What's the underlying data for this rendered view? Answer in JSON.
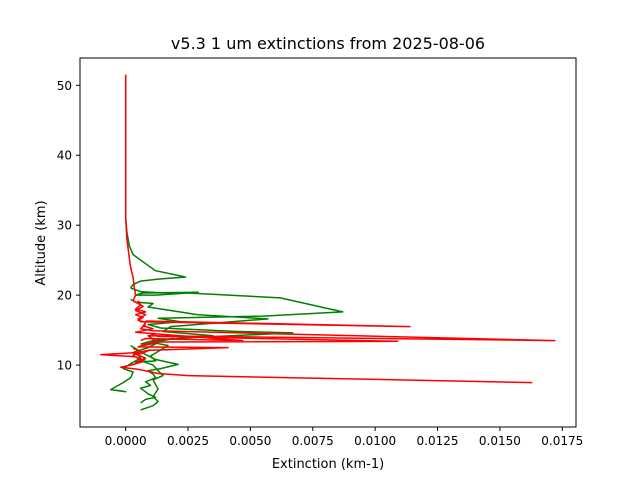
{
  "chart_data": {
    "type": "line",
    "title": "v5.3 1 um extinctions from 2025-08-06",
    "xlabel": "Extinction (km-1)",
    "ylabel": "Altitude (km)",
    "xlim": [
      -0.00183,
      0.01805
    ],
    "ylim": [
      1.15,
      53.9
    ],
    "xticks": [
      0.0,
      0.0025,
      0.005,
      0.0075,
      0.01,
      0.0125,
      0.015,
      0.0175
    ],
    "xtick_labels": [
      "0.0000",
      "0.0025",
      "0.0050",
      "0.0075",
      "0.0100",
      "0.0125",
      "0.0150",
      "0.0175"
    ],
    "yticks": [
      10,
      20,
      30,
      40,
      50
    ],
    "ytick_labels": [
      "10",
      "20",
      "30",
      "40",
      "50"
    ],
    "grid": false,
    "legend": "none",
    "series": [
      {
        "color": "#008000",
        "points": [
          [
            0.0,
            51.5
          ],
          [
            0.0,
            45
          ],
          [
            0.0,
            40
          ],
          [
            0.0,
            35
          ],
          [
            0.0,
            31
          ],
          [
            5e-05,
            29
          ],
          [
            0.00015,
            27
          ],
          [
            0.0003,
            25.8
          ],
          [
            0.0008,
            24.5
          ],
          [
            0.0012,
            23.5
          ],
          [
            0.0024,
            22.6
          ],
          [
            0.0013,
            22.3
          ],
          [
            0.0006,
            22
          ],
          [
            0.0003,
            21.5
          ],
          [
            0.0002,
            21
          ]
        ]
      },
      {
        "color": "#008000",
        "points": [
          [
            0.0002,
            21
          ],
          [
            0.0006,
            20.5
          ],
          [
            0.0015,
            20.3
          ],
          [
            0.0029,
            20.4
          ],
          [
            0.0007,
            20.3
          ],
          [
            0.0004,
            20
          ]
        ]
      },
      {
        "color": "#008000",
        "points": [
          [
            0.0004,
            20
          ],
          [
            0.0012,
            20
          ],
          [
            0.0025,
            20.3
          ],
          [
            0.0062,
            19.6
          ],
          [
            0.0087,
            17.6
          ],
          [
            0.0055,
            17
          ],
          [
            0.0013,
            16.7
          ],
          [
            0.0022,
            16.2
          ],
          [
            0.0009,
            15.8
          ],
          [
            0.0014,
            15.3
          ],
          [
            0.0045,
            14.8
          ],
          [
            0.0067,
            14.6
          ],
          [
            0.0025,
            13.9
          ],
          [
            0.0011,
            13.5
          ],
          [
            0.0006,
            13
          ]
        ]
      },
      {
        "color": "#008000",
        "points": [
          [
            0.0002,
            19.4
          ],
          [
            0.0004,
            19
          ],
          [
            0.0011,
            18.8
          ],
          [
            0.0009,
            18.3
          ],
          [
            0.0018,
            17.8
          ],
          [
            0.0029,
            17.2
          ],
          [
            0.0057,
            16.6
          ],
          [
            0.0018,
            15.5
          ],
          [
            0.0015,
            14.8
          ],
          [
            0.0035,
            14.2
          ],
          [
            0.0015,
            13.6
          ],
          [
            0.0009,
            12.5
          ],
          [
            0.0003,
            11.8
          ]
        ]
      },
      {
        "color": "#008000",
        "points": [
          [
            0.0002,
            12.8
          ],
          [
            0.0008,
            11.5
          ],
          [
            0.0012,
            10.8
          ],
          [
            0.0021,
            10.1
          ],
          [
            0.0014,
            9.5
          ],
          [
            0.0009,
            9.2
          ],
          [
            0.0011,
            8.7
          ],
          [
            0.0012,
            8.2
          ],
          [
            0.0008,
            7.6
          ],
          [
            0.001,
            7.1
          ],
          [
            0.0006,
            6.7
          ],
          [
            0.0009,
            5.9
          ],
          [
            0.0012,
            5.4
          ],
          [
            0.0008,
            5.1
          ],
          [
            0.0006,
            4.6
          ]
        ]
      },
      {
        "color": "#008000",
        "points": [
          [
            0.0004,
            11.9
          ],
          [
            0.0006,
            11
          ],
          [
            0.0002,
            10.2
          ],
          [
            -0.0001,
            9.5
          ],
          [
            0.0003,
            9
          ],
          [
            0.0002,
            8.2
          ],
          [
            -0.0001,
            7.5
          ],
          [
            -0.0003,
            7.1
          ],
          [
            -0.0006,
            6.5
          ],
          [
            0.0,
            6.2
          ],
          [
            -0.0003,
            6.4
          ]
        ]
      },
      {
        "color": "#008000",
        "points": [
          [
            0.0007,
            10.5
          ],
          [
            0.0011,
            10
          ],
          [
            0.0013,
            9.2
          ],
          [
            0.0015,
            8.5
          ],
          [
            0.0011,
            7.9
          ],
          [
            0.0012,
            7.2
          ],
          [
            0.0013,
            6.6
          ],
          [
            0.0011,
            5.5
          ],
          [
            0.0013,
            4.8
          ],
          [
            0.0011,
            4.2
          ],
          [
            0.0006,
            3.6
          ]
        ]
      },
      {
        "color": "#008000",
        "points": [
          [
            0.0008,
            10.8
          ],
          [
            0.0004,
            10.4
          ],
          [
            0.0012,
            10.6
          ],
          [
            0.001,
            11.3
          ],
          [
            0.0017,
            12.8
          ],
          [
            0.0011,
            13.2
          ],
          [
            0.0019,
            13.8
          ],
          [
            0.0009,
            13.3
          ]
        ]
      },
      {
        "color": "#ff0000",
        "points": [
          [
            0.0,
            51.5
          ],
          [
            0.0,
            45
          ],
          [
            0.0,
            40
          ],
          [
            0.0,
            35
          ],
          [
            0.0,
            31
          ],
          [
            5e-05,
            28
          ],
          [
            0.00012,
            26
          ],
          [
            0.0002,
            24
          ],
          [
            0.0003,
            22.5
          ],
          [
            0.00035,
            21
          ],
          [
            0.0004,
            20
          ]
        ]
      },
      {
        "color": "#ff0000",
        "points": [
          [
            0.0004,
            20
          ],
          [
            0.0003,
            19.2
          ],
          [
            0.0007,
            18.4
          ],
          [
            0.0004,
            17.8
          ],
          [
            0.0008,
            17.2
          ],
          [
            0.0005,
            16.6
          ],
          [
            0.0006,
            16.2
          ],
          [
            0.0114,
            15.5
          ],
          [
            0.0008,
            16.3
          ]
        ]
      },
      {
        "color": "#ff0000",
        "points": [
          [
            0.0005,
            19.2
          ],
          [
            0.0006,
            18.6
          ],
          [
            0.0004,
            18
          ],
          [
            0.0008,
            17.6
          ],
          [
            0.0004,
            17.2
          ],
          [
            0.0007,
            16.8
          ],
          [
            0.0005,
            16.4
          ],
          [
            0.0008,
            16.1
          ],
          [
            0.0007,
            15.6
          ],
          [
            0.0011,
            15.2
          ],
          [
            0.0004,
            14.7
          ],
          [
            0.0047,
            13.5
          ],
          [
            0.0008,
            13.8
          ],
          [
            0.0006,
            13.5
          ]
        ]
      },
      {
        "color": "#ff0000",
        "points": [
          [
            0.0008,
            15.8
          ],
          [
            0.0006,
            15.2
          ],
          [
            0.0011,
            14.9
          ],
          [
            0.0172,
            13.5
          ],
          [
            0.0009,
            14.2
          ],
          [
            0.0013,
            13.2
          ],
          [
            0.0007,
            12.8
          ]
        ]
      },
      {
        "color": "#ff0000",
        "points": [
          [
            0.0009,
            14.6
          ],
          [
            0.0013,
            14.1
          ],
          [
            0.0109,
            13.4
          ],
          [
            0.0013,
            13.3
          ],
          [
            0.0008,
            13
          ],
          [
            0.0005,
            12.6
          ],
          [
            0.0041,
            12.5
          ],
          [
            0.0009,
            12.1
          ],
          [
            0.0005,
            11.8
          ],
          [
            -0.001,
            11.5
          ],
          [
            0.0004,
            11.2
          ],
          [
            0.0007,
            10.7
          ]
        ]
      },
      {
        "color": "#ff0000",
        "points": [
          [
            0.0003,
            12.4
          ],
          [
            0.0006,
            11.9
          ],
          [
            0.0003,
            11.4
          ],
          [
            0.0007,
            10.5
          ],
          [
            0.0002,
            10
          ],
          [
            -0.0002,
            9.7
          ],
          [
            0.0005,
            9.4
          ],
          [
            0.0009,
            9.1
          ],
          [
            0.0013,
            8.8
          ],
          [
            0.0025,
            8.5
          ],
          [
            0.0163,
            7.5
          ]
        ]
      },
      {
        "color": "#ff0000",
        "points": [
          [
            0.001,
            12.2
          ],
          [
            0.0006,
            11.6
          ],
          [
            0.0003,
            11.7
          ],
          [
            0.0008,
            11
          ],
          [
            0.0004,
            10.4
          ]
        ]
      }
    ]
  }
}
